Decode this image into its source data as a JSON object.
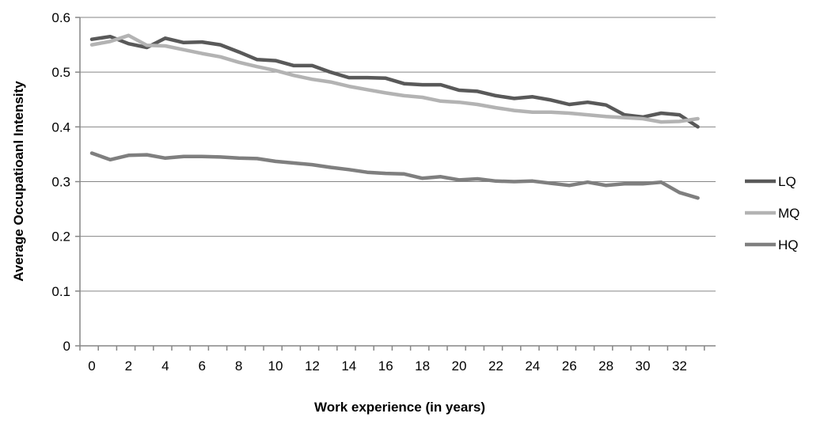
{
  "chart_data": {
    "type": "line",
    "title": "",
    "xlabel": "Work experience (in years)",
    "ylabel": "Average Occupatioanl Intensity",
    "xlim": [
      0,
      33
    ],
    "ylim": [
      0,
      0.6
    ],
    "x_ticks": [
      0,
      2,
      4,
      6,
      8,
      10,
      12,
      14,
      16,
      18,
      20,
      22,
      24,
      26,
      28,
      30,
      32
    ],
    "y_ticks": [
      0,
      0.1,
      0.2,
      0.3,
      0.4,
      0.5,
      0.6
    ],
    "grid": true,
    "legend_position": "right",
    "x": [
      0,
      1,
      2,
      3,
      4,
      5,
      6,
      7,
      8,
      9,
      10,
      11,
      12,
      13,
      14,
      15,
      16,
      17,
      18,
      19,
      20,
      21,
      22,
      23,
      24,
      25,
      26,
      27,
      28,
      29,
      30,
      31,
      32,
      33
    ],
    "series": [
      {
        "name": "LQ",
        "color": "#595959",
        "values": [
          0.56,
          0.565,
          0.552,
          0.545,
          0.562,
          0.554,
          0.555,
          0.55,
          0.537,
          0.523,
          0.521,
          0.512,
          0.512,
          0.5,
          0.49,
          0.49,
          0.489,
          0.479,
          0.477,
          0.477,
          0.467,
          0.465,
          0.457,
          0.452,
          0.455,
          0.449,
          0.441,
          0.445,
          0.44,
          0.422,
          0.418,
          0.425,
          0.422,
          0.4
        ]
      },
      {
        "name": "MQ",
        "color": "#b3b3b3",
        "values": [
          0.55,
          0.556,
          0.567,
          0.549,
          0.548,
          0.541,
          0.534,
          0.528,
          0.518,
          0.51,
          0.503,
          0.494,
          0.487,
          0.482,
          0.474,
          0.468,
          0.462,
          0.457,
          0.454,
          0.447,
          0.445,
          0.441,
          0.435,
          0.43,
          0.427,
          0.427,
          0.425,
          0.422,
          0.419,
          0.417,
          0.415,
          0.409,
          0.41,
          0.415
        ]
      },
      {
        "name": "HQ",
        "color": "#7f7f7f",
        "values": [
          0.352,
          0.34,
          0.348,
          0.349,
          0.343,
          0.346,
          0.346,
          0.345,
          0.343,
          0.342,
          0.337,
          0.334,
          0.331,
          0.326,
          0.322,
          0.317,
          0.315,
          0.314,
          0.306,
          0.309,
          0.303,
          0.305,
          0.301,
          0.3,
          0.301,
          0.297,
          0.293,
          0.299,
          0.293,
          0.296,
          0.296,
          0.299,
          0.28,
          0.27
        ]
      }
    ]
  }
}
